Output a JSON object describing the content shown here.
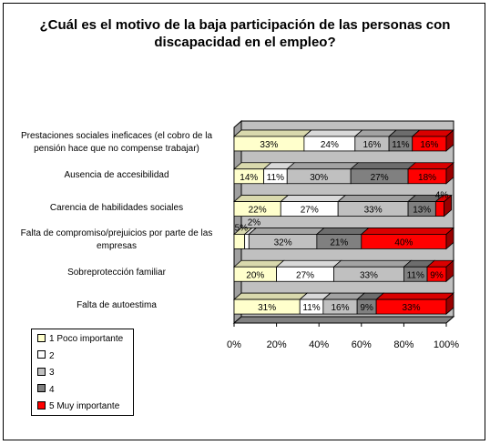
{
  "title": [
    "¿Cuál es el motivo de la baja participación de las personas con",
    "discapacidad en el empleo?"
  ],
  "chart_data": {
    "type": "bar",
    "stacked": true,
    "orientation": "horizontal",
    "percent_axis": true,
    "categories": [
      [
        "Prestaciones sociales ineficaces (el cobro de la",
        "pensión hace que no compense trabajar)"
      ],
      [
        "Ausencia de accesibilidad"
      ],
      [
        "Carencia de habilidades sociales"
      ],
      [
        "Falta de compromiso/prejuicios por parte de las",
        "empresas"
      ],
      [
        "Sobreprotección familiar"
      ],
      [
        "Falta de autoestima"
      ]
    ],
    "series": [
      {
        "name": "1 Poco importante",
        "color": "#ffffcc",
        "values": [
          33,
          14,
          22,
          5,
          20,
          31
        ]
      },
      {
        "name": "2",
        "color": "#ffffff",
        "values": [
          24,
          11,
          27,
          2,
          27,
          11
        ]
      },
      {
        "name": "3",
        "color": "#c0c0c0",
        "values": [
          16,
          30,
          33,
          32,
          33,
          16
        ]
      },
      {
        "name": "4",
        "color": "#808080",
        "values": [
          11,
          27,
          13,
          21,
          11,
          9
        ]
      },
      {
        "name": "5 Muy importante",
        "color": "#ff0000",
        "values": [
          16,
          18,
          4,
          40,
          9,
          33
        ]
      }
    ],
    "data_labels": [
      [
        "33%",
        "24%",
        "16%",
        "11%",
        "16%"
      ],
      [
        "14%",
        "11%",
        "30%",
        "27%",
        "18%"
      ],
      [
        "22%",
        "27%",
        "33%",
        "13%",
        "4%"
      ],
      [
        "5%",
        "2%",
        "32%",
        "21%",
        "40%"
      ],
      [
        "20%",
        "27%",
        "33%",
        "11%",
        "9%"
      ],
      [
        "31%",
        "11%",
        "16%",
        "9%",
        "33%"
      ]
    ],
    "x_ticks": [
      "0%",
      "20%",
      "40%",
      "60%",
      "80%",
      "100%"
    ],
    "xlim": [
      0,
      100
    ],
    "legend_position": "bottom-left",
    "wall_color": "#c0c0c0"
  }
}
